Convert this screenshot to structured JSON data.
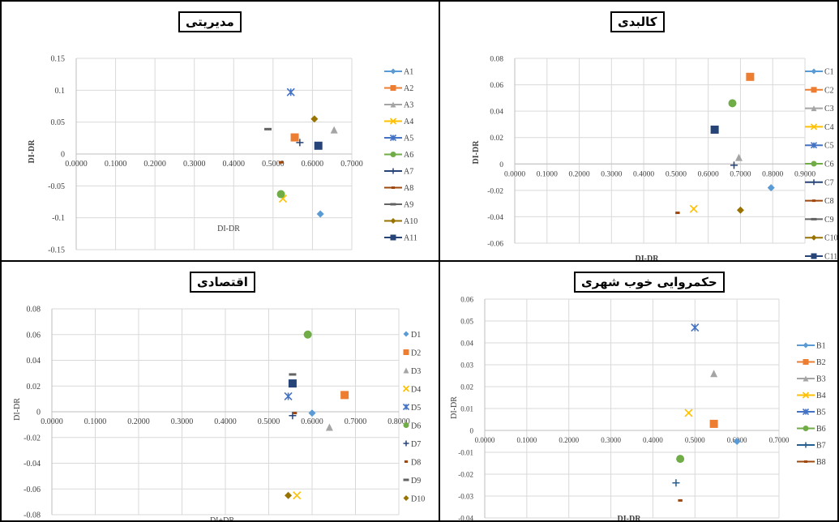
{
  "colors": {
    "blue": "#5B9BD5",
    "orange": "#ED7D31",
    "gray": "#A5A5A5",
    "yellow": "#FFC000",
    "dblue": "#4472C4",
    "green": "#70AD47",
    "navy": "#264478",
    "brown": "#9E480E",
    "darkgray": "#636363",
    "olive": "#997300",
    "darknavy": "#255E91"
  },
  "chart_data": [
    {
      "id": "tl",
      "type": "scatter",
      "title": "مدیریتی",
      "xlabel": "DI-DR",
      "ylabel": "DI-DR",
      "xlim": [
        0,
        0.7
      ],
      "ylim": [
        -0.15,
        0.15
      ],
      "x_ticks": [
        "0.0000",
        "0.1000",
        "0.2000",
        "0.3000",
        "0.4000",
        "0.5000",
        "0.6000",
        "0.7000"
      ],
      "y_ticks": [
        "0.15",
        "0.1",
        "0.05",
        "0",
        "-0.05",
        "-0.1",
        "-0.15"
      ],
      "series": [
        {
          "name": "A1",
          "x": 0.62,
          "y": -0.094,
          "marker": "diamond",
          "color": "#5B9BD5"
        },
        {
          "name": "A2",
          "x": 0.555,
          "y": 0.026,
          "marker": "square",
          "color": "#ED7D31"
        },
        {
          "name": "A3",
          "x": 0.655,
          "y": 0.038,
          "marker": "triangle",
          "color": "#A5A5A5"
        },
        {
          "name": "A4",
          "x": 0.525,
          "y": -0.07,
          "marker": "x",
          "color": "#FFC000"
        },
        {
          "name": "A5",
          "x": 0.545,
          "y": 0.097,
          "marker": "star",
          "color": "#4472C4"
        },
        {
          "name": "A6",
          "x": 0.52,
          "y": -0.063,
          "marker": "circle",
          "color": "#70AD47"
        },
        {
          "name": "A7",
          "x": 0.568,
          "y": 0.018,
          "marker": "plus",
          "color": "#264478"
        },
        {
          "name": "A8",
          "x": 0.52,
          "y": -0.013,
          "marker": "dash",
          "color": "#9E480E"
        },
        {
          "name": "A9",
          "x": 0.487,
          "y": 0.039,
          "marker": "longdash",
          "color": "#636363"
        },
        {
          "name": "A10",
          "x": 0.605,
          "y": 0.055,
          "marker": "diamond",
          "color": "#997300"
        },
        {
          "name": "A11",
          "x": 0.615,
          "y": 0.013,
          "marker": "square",
          "color": "#264478"
        }
      ]
    },
    {
      "id": "tr",
      "type": "scatter",
      "title": "کالبدی",
      "xlabel": "DI-DR",
      "ylabel": "DI-DR",
      "xlim": [
        0,
        0.9
      ],
      "ylim": [
        -0.06,
        0.08
      ],
      "x_ticks": [
        "0.0000",
        "0.1000",
        "0.2000",
        "0.3000",
        "0.4000",
        "0.5000",
        "0.6000",
        "0.7000",
        "0.8000",
        "0.9000"
      ],
      "y_ticks": [
        "0.08",
        "0.06",
        "0.04",
        "0.02",
        "0",
        "-0.02",
        "-0.04",
        "-0.06"
      ],
      "series": [
        {
          "name": "C1",
          "x": 0.795,
          "y": -0.018,
          "marker": "diamond",
          "color": "#5B9BD5"
        },
        {
          "name": "C2",
          "x": 0.73,
          "y": 0.066,
          "marker": "square",
          "color": "#ED7D31"
        },
        {
          "name": "C3",
          "x": 0.695,
          "y": 0.005,
          "marker": "triangle",
          "color": "#A5A5A5"
        },
        {
          "name": "C4",
          "x": 0.555,
          "y": -0.034,
          "marker": "x",
          "color": "#FFC000"
        },
        {
          "name": "C5",
          "x": 0.62,
          "y": 0.026,
          "marker": "star",
          "color": "#4472C4"
        },
        {
          "name": "C6",
          "x": 0.675,
          "y": 0.046,
          "marker": "circle",
          "color": "#70AD47"
        },
        {
          "name": "C7",
          "x": 0.68,
          "y": -0.001,
          "marker": "plus",
          "color": "#264478"
        },
        {
          "name": "C8",
          "x": 0.505,
          "y": -0.037,
          "marker": "dash",
          "color": "#9E480E"
        },
        {
          "name": "C9",
          "x": 0.62,
          "y": 0.028,
          "marker": "longdash",
          "color": "#636363"
        },
        {
          "name": "C10",
          "x": 0.7,
          "y": -0.035,
          "marker": "diamond",
          "color": "#997300"
        },
        {
          "name": "C11",
          "x": 0.62,
          "y": 0.026,
          "marker": "square",
          "color": "#264478"
        }
      ]
    },
    {
      "id": "bl",
      "type": "scatter",
      "title": "اقتصادی",
      "xlabel": "DI+DR",
      "ylabel": "DI-DR",
      "xlim": [
        0,
        0.8
      ],
      "ylim": [
        -0.08,
        0.08
      ],
      "x_ticks": [
        "0.0000",
        "0.1000",
        "0.2000",
        "0.3000",
        "0.4000",
        "0.5000",
        "0.6000",
        "0.7000",
        "0.8000"
      ],
      "y_ticks": [
        "0.08",
        "0.06",
        "0.04",
        "0.02",
        "0",
        "-0.02",
        "-0.04",
        "-0.06",
        "-0.08"
      ],
      "series": [
        {
          "name": "D1",
          "x": 0.6,
          "y": -0.001,
          "marker": "diamond",
          "color": "#5B9BD5"
        },
        {
          "name": "D2",
          "x": 0.675,
          "y": 0.013,
          "marker": "square",
          "color": "#ED7D31"
        },
        {
          "name": "D3",
          "x": 0.64,
          "y": -0.012,
          "marker": "triangle",
          "color": "#A5A5A5"
        },
        {
          "name": "D4",
          "x": 0.565,
          "y": -0.065,
          "marker": "x",
          "color": "#FFC000"
        },
        {
          "name": "D5",
          "x": 0.545,
          "y": 0.012,
          "marker": "star",
          "color": "#4472C4"
        },
        {
          "name": "D6",
          "x": 0.59,
          "y": 0.06,
          "marker": "circle",
          "color": "#70AD47"
        },
        {
          "name": "D7",
          "x": 0.555,
          "y": -0.003,
          "marker": "plus",
          "color": "#264478"
        },
        {
          "name": "D8",
          "x": 0.56,
          "y": -0.001,
          "marker": "dash",
          "color": "#9E480E"
        },
        {
          "name": "D9",
          "x": 0.555,
          "y": 0.029,
          "marker": "longdash",
          "color": "#636363"
        },
        {
          "name": "D10",
          "x": 0.545,
          "y": -0.065,
          "marker": "diamond",
          "color": "#997300"
        },
        {
          "name": "",
          "x": 0.555,
          "y": 0.022,
          "marker": "square",
          "color": "#264478"
        }
      ]
    },
    {
      "id": "br",
      "type": "scatter",
      "title": "حکمروایی خوب شهری",
      "xlabel": "DI-DR",
      "ylabel": "DI-DR",
      "xlim": [
        0,
        0.7
      ],
      "ylim": [
        -0.04,
        0.06
      ],
      "x_ticks": [
        "0.0000",
        "0.1000",
        "0.2000",
        "0.3000",
        "0.4000",
        "0.5000",
        "0.6000",
        "0.7000"
      ],
      "y_ticks": [
        "0.06",
        "0.05",
        "0.04",
        "0.03",
        "0.02",
        "0.01",
        "0",
        "-0.01",
        "-0.02",
        "-0.03",
        "-0.04"
      ],
      "series": [
        {
          "name": "B1",
          "x": 0.6,
          "y": -0.005,
          "marker": "diamond",
          "color": "#5B9BD5"
        },
        {
          "name": "B2",
          "x": 0.545,
          "y": 0.003,
          "marker": "square",
          "color": "#ED7D31"
        },
        {
          "name": "B3",
          "x": 0.545,
          "y": 0.026,
          "marker": "triangle",
          "color": "#A5A5A5"
        },
        {
          "name": "B4",
          "x": 0.485,
          "y": 0.008,
          "marker": "x",
          "color": "#FFC000"
        },
        {
          "name": "B5",
          "x": 0.5,
          "y": 0.047,
          "marker": "star",
          "color": "#4472C4"
        },
        {
          "name": "B6",
          "x": 0.465,
          "y": -0.013,
          "marker": "circle",
          "color": "#70AD47"
        },
        {
          "name": "B7",
          "x": 0.455,
          "y": -0.024,
          "marker": "plus",
          "color": "#255E91"
        },
        {
          "name": "B8",
          "x": 0.465,
          "y": -0.032,
          "marker": "dash",
          "color": "#9E480E"
        }
      ]
    }
  ]
}
